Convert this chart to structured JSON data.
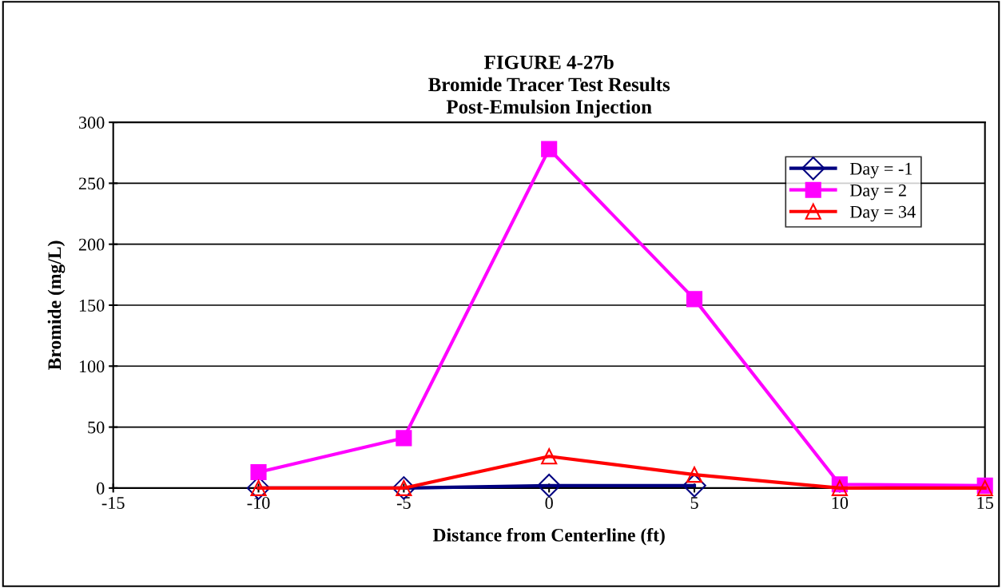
{
  "chart_data": {
    "type": "line",
    "title": "FIGURE 4-27b\nBromide Tracer Test Results\nPost-Emulsion Injection",
    "xlabel": "Distance from Centerline (ft)",
    "ylabel": "Bromide (mg/L)",
    "x": [
      -10,
      -5,
      0,
      5,
      10,
      15
    ],
    "series": [
      {
        "name": "Day = -1",
        "color": "#000080",
        "marker": "diamond",
        "values": [
          0,
          0,
          2,
          2,
          null,
          null
        ]
      },
      {
        "name": "Day = 2",
        "color": "#ff00ff",
        "marker": "square",
        "values": [
          13,
          41,
          278,
          155,
          3,
          2
        ]
      },
      {
        "name": "Day = 34",
        "color": "#ff0000",
        "marker": "triangle",
        "values": [
          0,
          0,
          26,
          11,
          0,
          0
        ]
      }
    ],
    "xlim": [
      -15,
      15
    ],
    "xticks": [
      -15,
      -10,
      -5,
      0,
      5,
      10,
      15
    ],
    "ylim": [
      0,
      300
    ],
    "yticks": [
      0,
      50,
      100,
      150,
      200,
      250,
      300
    ],
    "grid": "y",
    "legend": "top right",
    "line_style": "solid"
  }
}
